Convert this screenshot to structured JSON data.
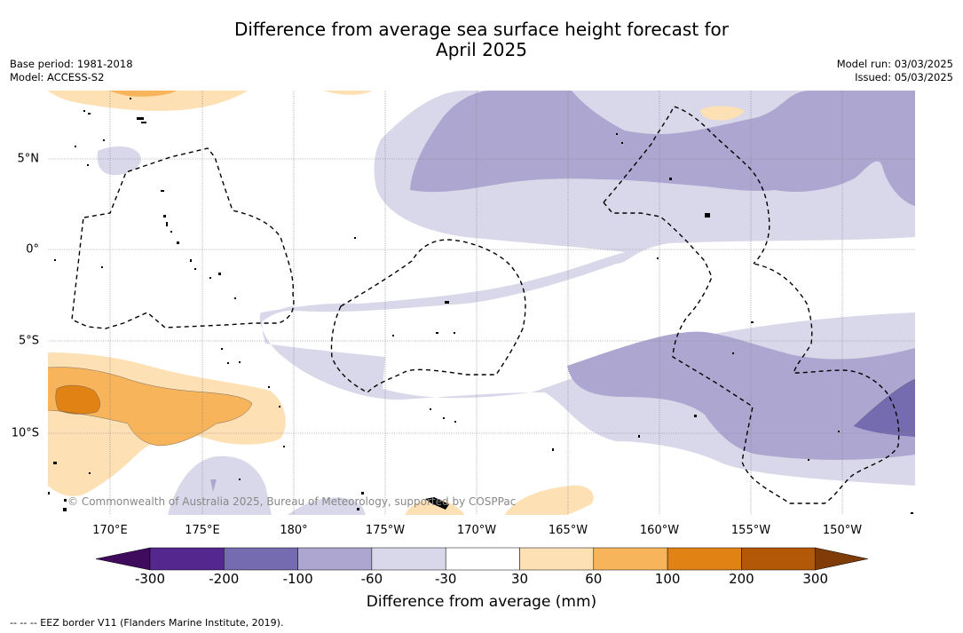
{
  "title_line1": "Difference from average sea surface height forecast for",
  "title_line2": "April 2025",
  "base_period": "Base period: 1981-2018",
  "model": "Model: ACCESS-S2",
  "model_run": "Model run: 03/03/2025",
  "issued": "Issued: 05/03/2025",
  "longitude_labels": [
    "170°E",
    "175°E",
    "180°",
    "175°W",
    "170°W",
    "165°W",
    "160°W",
    "155°W",
    "150°W"
  ],
  "latitude_labels": [
    "5°N",
    "0°",
    "5°S",
    "10°S"
  ],
  "credit": "© Commonwealth of Australia 2025, Bureau of Meteorology, supported by COSPPac",
  "colorbar": {
    "ticks": [
      "-300",
      "-200",
      "-100",
      "-60",
      "-30",
      "30",
      "60",
      "100",
      "200",
      "300"
    ],
    "colors": [
      "#3f0b5c",
      "#54278f",
      "#756bb1",
      "#aca6d0",
      "#d8d8ea",
      "#ffffff",
      "#fde0b4",
      "#f8b45b",
      "#e08214",
      "#b35806",
      "#7f3b08"
    ],
    "label": "Difference from average (mm)"
  },
  "legend": "--  --  -- EEZ border V11 (Flanders Marine Institute, 2019)."
}
